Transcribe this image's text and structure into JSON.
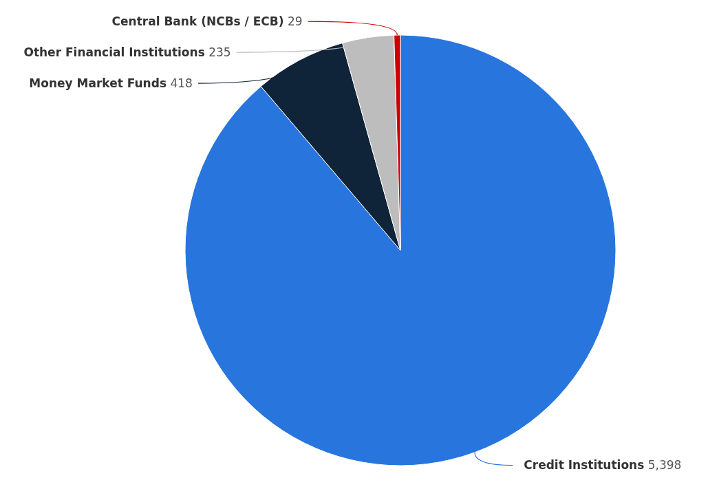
{
  "chart_data": {
    "type": "pie",
    "categories": [
      "Credit Institutions",
      "Money Market Funds",
      "Other Financial Institutions",
      "Central Bank (NCBs / ECB)"
    ],
    "values": [
      5398,
      418,
      235,
      29
    ],
    "colors": [
      "#2876dd",
      "#0f2339",
      "#bdbdbd",
      "#cc0000"
    ],
    "value_labels": [
      "5,398",
      "418",
      "235",
      "29"
    ]
  }
}
